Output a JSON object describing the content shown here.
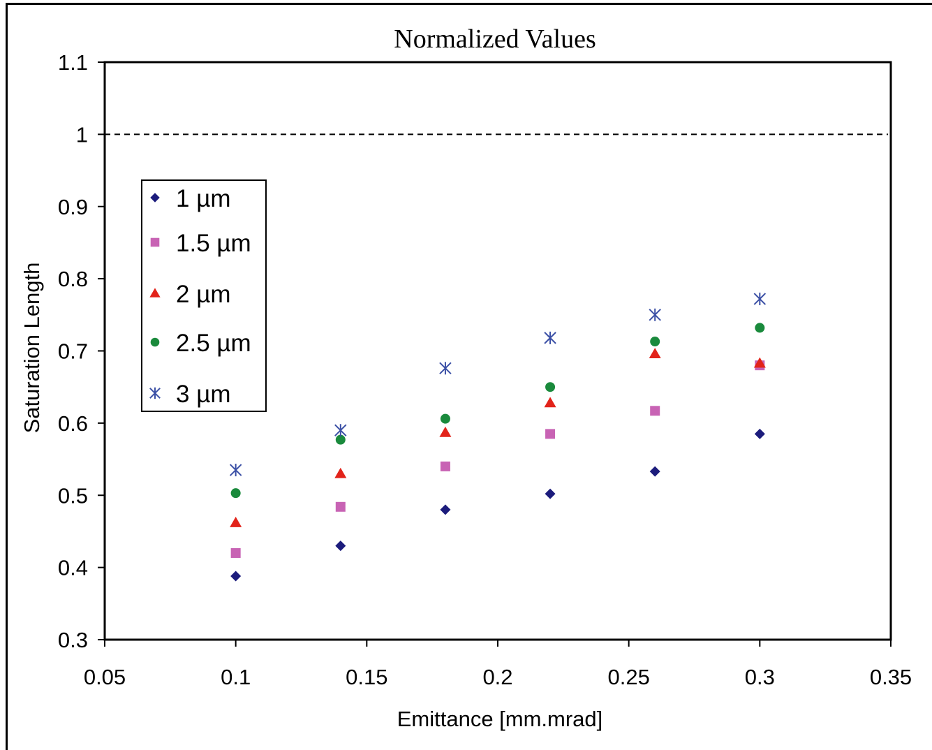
{
  "chart_data": {
    "type": "scatter",
    "title": "Normalized Values",
    "xlabel": "Emittance [mm.mrad]",
    "ylabel": "Saturation Length",
    "xlim": [
      0.05,
      0.35
    ],
    "ylim": [
      0.3,
      1.1
    ],
    "xticks": [
      "0.05",
      "0.1",
      "0.15",
      "0.2",
      "0.25",
      "0.3",
      "0.35"
    ],
    "yticks": [
      "0.3",
      "0.4",
      "0.5",
      "0.6",
      "0.7",
      "0.8",
      "0.9",
      "1",
      "1.1"
    ],
    "reference_line": {
      "y": 1.0,
      "style": "dashed"
    },
    "legend_position": "upper-left",
    "x": [
      0.1,
      0.14,
      0.18,
      0.22,
      0.26,
      0.3
    ],
    "series": [
      {
        "name": "1 µm",
        "marker": "diamond",
        "color": "#1c1c7c",
        "values": [
          0.388,
          0.43,
          0.48,
          0.502,
          0.533,
          0.585
        ]
      },
      {
        "name": "1.5 µm",
        "marker": "square",
        "color": "#c863b4",
        "values": [
          0.42,
          0.484,
          0.54,
          0.585,
          0.617,
          0.68
        ]
      },
      {
        "name": "2 µm",
        "marker": "triangle",
        "color": "#e2231a",
        "values": [
          0.462,
          0.53,
          0.587,
          0.628,
          0.696,
          0.683
        ]
      },
      {
        "name": "2.5 µm",
        "marker": "circle",
        "color": "#1a8a3c",
        "values": [
          0.503,
          0.577,
          0.606,
          0.65,
          0.713,
          0.732
        ]
      },
      {
        "name": "3 µm",
        "marker": "asterisk",
        "color": "#3a4fa5",
        "values": [
          0.535,
          0.59,
          0.676,
          0.718,
          0.75,
          0.772
        ]
      }
    ]
  }
}
